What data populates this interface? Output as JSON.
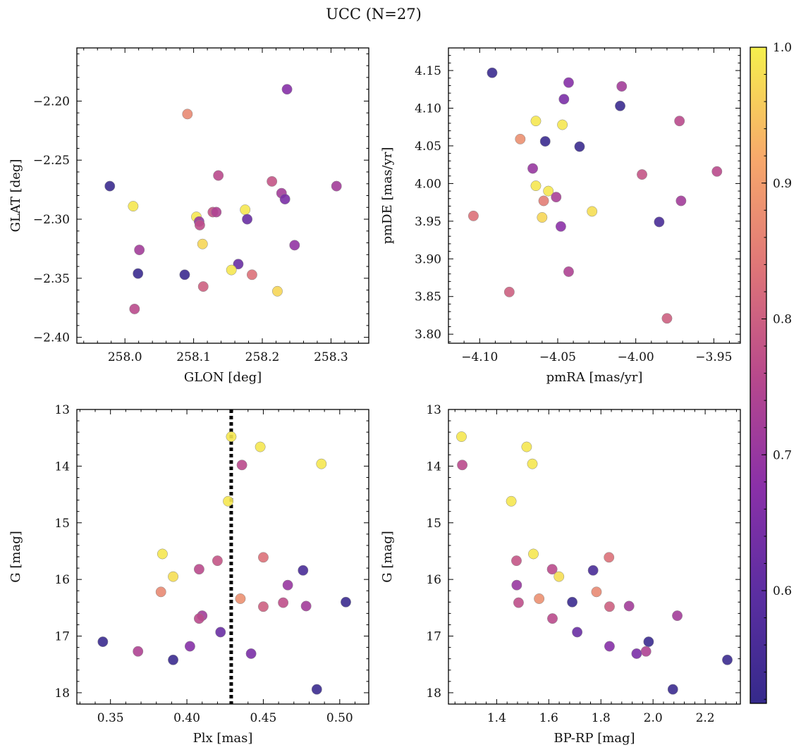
{
  "title": "UCC (N=27)",
  "colorbar": {
    "min": 0.517,
    "max": 1.0,
    "ticks": [
      0.6,
      0.7,
      0.8,
      0.9,
      1.0
    ],
    "tick_labels": [
      "0.6",
      "0.7",
      "0.8",
      "0.9",
      "1.0"
    ],
    "colormap": "plasma"
  },
  "chart_data": [
    {
      "type": "scatter",
      "xlabel": "GLON [deg]",
      "ylabel": "GLAT [deg]",
      "xlim": [
        257.93,
        258.355
      ],
      "ylim": [
        -2.405,
        -2.155
      ],
      "y_inverted": false,
      "xticks": [
        258.0,
        258.1,
        258.2,
        258.3
      ],
      "xtick_labels": [
        "258.0",
        "258.1",
        "258.2",
        "258.3"
      ],
      "yticks": [
        -2.4,
        -2.35,
        -2.3,
        -2.25,
        -2.2
      ],
      "ytick_labels": [
        "−2.40",
        "−2.35",
        "−2.30",
        "−2.25",
        "−2.20"
      ],
      "points": [
        {
          "x": 258.236,
          "y": -2.19,
          "c": 0.67
        },
        {
          "x": 258.091,
          "y": -2.211,
          "c": 0.87
        },
        {
          "x": 257.978,
          "y": -2.272,
          "c": 0.53
        },
        {
          "x": 258.012,
          "y": -2.289,
          "c": 0.99
        },
        {
          "x": 258.136,
          "y": -2.263,
          "c": 0.76
        },
        {
          "x": 258.214,
          "y": -2.268,
          "c": 0.78
        },
        {
          "x": 258.308,
          "y": -2.272,
          "c": 0.72
        },
        {
          "x": 258.228,
          "y": -2.278,
          "c": 0.72
        },
        {
          "x": 258.233,
          "y": -2.283,
          "c": 0.65
        },
        {
          "x": 258.175,
          "y": -2.292,
          "c": 0.99
        },
        {
          "x": 258.104,
          "y": -2.298,
          "c": 0.99
        },
        {
          "x": 258.128,
          "y": -2.294,
          "c": 0.78
        },
        {
          "x": 258.133,
          "y": -2.294,
          "c": 0.74
        },
        {
          "x": 258.108,
          "y": -2.302,
          "c": 0.7
        },
        {
          "x": 258.109,
          "y": -2.305,
          "c": 0.77
        },
        {
          "x": 258.178,
          "y": -2.3,
          "c": 0.62
        },
        {
          "x": 258.113,
          "y": -2.321,
          "c": 0.97
        },
        {
          "x": 258.247,
          "y": -2.322,
          "c": 0.69
        },
        {
          "x": 258.021,
          "y": -2.326,
          "c": 0.72
        },
        {
          "x": 258.165,
          "y": -2.338,
          "c": 0.62
        },
        {
          "x": 258.155,
          "y": -2.343,
          "c": 0.99
        },
        {
          "x": 258.019,
          "y": -2.346,
          "c": 0.53
        },
        {
          "x": 258.087,
          "y": -2.347,
          "c": 0.53
        },
        {
          "x": 258.185,
          "y": -2.347,
          "c": 0.83
        },
        {
          "x": 258.114,
          "y": -2.357,
          "c": 0.8
        },
        {
          "x": 258.222,
          "y": -2.361,
          "c": 0.97
        },
        {
          "x": 258.014,
          "y": -2.376,
          "c": 0.76
        }
      ]
    },
    {
      "type": "scatter",
      "xlabel": "pmRA [mas/yr]",
      "ylabel": "pmDE [mas/yr]",
      "xlim": [
        -4.12,
        -3.933
      ],
      "ylim": [
        3.788,
        4.18
      ],
      "y_inverted": false,
      "xticks": [
        -4.1,
        -4.05,
        -4.0,
        -3.95
      ],
      "xtick_labels": [
        "−4.10",
        "−4.05",
        "−4.00",
        "−3.95"
      ],
      "yticks": [
        3.8,
        3.85,
        3.9,
        3.95,
        4.0,
        4.05,
        4.1,
        4.15
      ],
      "ytick_labels": [
        "3.80",
        "3.85",
        "3.90",
        "3.95",
        "4.00",
        "4.05",
        "4.10",
        "4.15"
      ],
      "points": [
        {
          "x": -4.092,
          "y": 4.147,
          "c": 0.53
        },
        {
          "x": -4.043,
          "y": 4.134,
          "c": 0.67
        },
        {
          "x": -4.009,
          "y": 4.129,
          "c": 0.72
        },
        {
          "x": -4.046,
          "y": 4.112,
          "c": 0.65
        },
        {
          "x": -4.01,
          "y": 4.103,
          "c": 0.53
        },
        {
          "x": -4.064,
          "y": 4.083,
          "c": 0.99
        },
        {
          "x": -4.047,
          "y": 4.078,
          "c": 0.99
        },
        {
          "x": -3.972,
          "y": 4.083,
          "c": 0.76
        },
        {
          "x": -4.074,
          "y": 4.059,
          "c": 0.88
        },
        {
          "x": -4.058,
          "y": 4.056,
          "c": 0.53
        },
        {
          "x": -4.036,
          "y": 4.049,
          "c": 0.53
        },
        {
          "x": -4.066,
          "y": 4.02,
          "c": 0.7
        },
        {
          "x": -3.996,
          "y": 4.012,
          "c": 0.78
        },
        {
          "x": -3.948,
          "y": 4.016,
          "c": 0.76
        },
        {
          "x": -4.064,
          "y": 3.997,
          "c": 0.99
        },
        {
          "x": -4.056,
          "y": 3.99,
          "c": 0.99
        },
        {
          "x": -4.051,
          "y": 3.982,
          "c": 0.73
        },
        {
          "x": -4.059,
          "y": 3.977,
          "c": 0.85
        },
        {
          "x": -3.971,
          "y": 3.977,
          "c": 0.72
        },
        {
          "x": -4.028,
          "y": 3.963,
          "c": 0.98
        },
        {
          "x": -4.104,
          "y": 3.957,
          "c": 0.83
        },
        {
          "x": -4.06,
          "y": 3.955,
          "c": 0.97
        },
        {
          "x": -3.985,
          "y": 3.949,
          "c": 0.56
        },
        {
          "x": -4.048,
          "y": 3.943,
          "c": 0.68
        },
        {
          "x": -4.043,
          "y": 3.883,
          "c": 0.74
        },
        {
          "x": -4.081,
          "y": 3.856,
          "c": 0.8
        },
        {
          "x": -3.98,
          "y": 3.821,
          "c": 0.8
        }
      ]
    },
    {
      "type": "scatter",
      "xlabel": "Plx [mas]",
      "ylabel": "G [mag]",
      "xlim": [
        0.328,
        0.519
      ],
      "ylim": [
        13.0,
        18.2
      ],
      "y_inverted": true,
      "xticks": [
        0.35,
        0.4,
        0.45,
        0.5
      ],
      "xtick_labels": [
        "0.35",
        "0.40",
        "0.45",
        "0.50"
      ],
      "yticks": [
        13,
        14,
        15,
        16,
        17,
        18
      ],
      "ytick_labels": [
        "13",
        "14",
        "15",
        "16",
        "17",
        "18"
      ],
      "vline": {
        "x": 0.429,
        "style": "dotted"
      },
      "points": [
        {
          "x": 0.429,
          "y": 13.48,
          "c": 0.99
        },
        {
          "x": 0.448,
          "y": 13.66,
          "c": 0.99
        },
        {
          "x": 0.436,
          "y": 13.98,
          "c": 0.76
        },
        {
          "x": 0.488,
          "y": 13.96,
          "c": 0.99
        },
        {
          "x": 0.427,
          "y": 14.62,
          "c": 0.99
        },
        {
          "x": 0.384,
          "y": 15.55,
          "c": 0.99
        },
        {
          "x": 0.45,
          "y": 15.61,
          "c": 0.83
        },
        {
          "x": 0.42,
          "y": 15.67,
          "c": 0.78
        },
        {
          "x": 0.408,
          "y": 15.82,
          "c": 0.76
        },
        {
          "x": 0.476,
          "y": 15.84,
          "c": 0.56
        },
        {
          "x": 0.391,
          "y": 15.95,
          "c": 0.98
        },
        {
          "x": 0.466,
          "y": 16.1,
          "c": 0.7
        },
        {
          "x": 0.383,
          "y": 16.22,
          "c": 0.87
        },
        {
          "x": 0.435,
          "y": 16.34,
          "c": 0.88
        },
        {
          "x": 0.504,
          "y": 16.4,
          "c": 0.53
        },
        {
          "x": 0.463,
          "y": 16.41,
          "c": 0.77
        },
        {
          "x": 0.45,
          "y": 16.48,
          "c": 0.8
        },
        {
          "x": 0.478,
          "y": 16.47,
          "c": 0.72
        },
        {
          "x": 0.41,
          "y": 16.64,
          "c": 0.72
        },
        {
          "x": 0.408,
          "y": 16.69,
          "c": 0.76
        },
        {
          "x": 0.422,
          "y": 16.93,
          "c": 0.62
        },
        {
          "x": 0.345,
          "y": 17.1,
          "c": 0.53
        },
        {
          "x": 0.402,
          "y": 17.18,
          "c": 0.67
        },
        {
          "x": 0.368,
          "y": 17.27,
          "c": 0.74
        },
        {
          "x": 0.442,
          "y": 17.31,
          "c": 0.65
        },
        {
          "x": 0.391,
          "y": 17.42,
          "c": 0.53
        },
        {
          "x": 0.485,
          "y": 17.94,
          "c": 0.53
        }
      ]
    },
    {
      "type": "scatter",
      "xlabel": "BP-RP [mag]",
      "ylabel": "G [mag]",
      "xlim": [
        1.215,
        2.335
      ],
      "ylim": [
        13.0,
        18.2
      ],
      "y_inverted": true,
      "xticks": [
        1.4,
        1.6,
        1.8,
        2.0,
        2.2
      ],
      "xtick_labels": [
        "1.4",
        "1.6",
        "1.8",
        "2.0",
        "2.2"
      ],
      "yticks": [
        13,
        14,
        15,
        16,
        17,
        18
      ],
      "ytick_labels": [
        "13",
        "14",
        "15",
        "16",
        "17",
        "18"
      ],
      "points": [
        {
          "x": 1.265,
          "y": 13.48,
          "c": 0.99
        },
        {
          "x": 1.268,
          "y": 13.98,
          "c": 0.76
        },
        {
          "x": 1.515,
          "y": 13.66,
          "c": 0.99
        },
        {
          "x": 1.537,
          "y": 13.96,
          "c": 0.99
        },
        {
          "x": 1.456,
          "y": 14.62,
          "c": 0.99
        },
        {
          "x": 1.541,
          "y": 15.55,
          "c": 0.99
        },
        {
          "x": 1.476,
          "y": 15.67,
          "c": 0.78
        },
        {
          "x": 1.831,
          "y": 15.61,
          "c": 0.83
        },
        {
          "x": 1.613,
          "y": 15.82,
          "c": 0.76
        },
        {
          "x": 1.77,
          "y": 15.84,
          "c": 0.56
        },
        {
          "x": 1.639,
          "y": 15.95,
          "c": 0.98
        },
        {
          "x": 1.477,
          "y": 16.1,
          "c": 0.7
        },
        {
          "x": 1.783,
          "y": 16.22,
          "c": 0.87
        },
        {
          "x": 1.563,
          "y": 16.34,
          "c": 0.88
        },
        {
          "x": 1.484,
          "y": 16.41,
          "c": 0.77
        },
        {
          "x": 1.69,
          "y": 16.4,
          "c": 0.53
        },
        {
          "x": 1.833,
          "y": 16.48,
          "c": 0.8
        },
        {
          "x": 1.908,
          "y": 16.47,
          "c": 0.72
        },
        {
          "x": 1.614,
          "y": 16.69,
          "c": 0.76
        },
        {
          "x": 2.093,
          "y": 16.64,
          "c": 0.72
        },
        {
          "x": 1.709,
          "y": 16.93,
          "c": 0.62
        },
        {
          "x": 1.983,
          "y": 17.1,
          "c": 0.53
        },
        {
          "x": 1.833,
          "y": 17.18,
          "c": 0.67
        },
        {
          "x": 1.973,
          "y": 17.27,
          "c": 0.74
        },
        {
          "x": 1.937,
          "y": 17.31,
          "c": 0.65
        },
        {
          "x": 2.285,
          "y": 17.42,
          "c": 0.53
        },
        {
          "x": 2.076,
          "y": 17.94,
          "c": 0.53
        }
      ]
    }
  ]
}
